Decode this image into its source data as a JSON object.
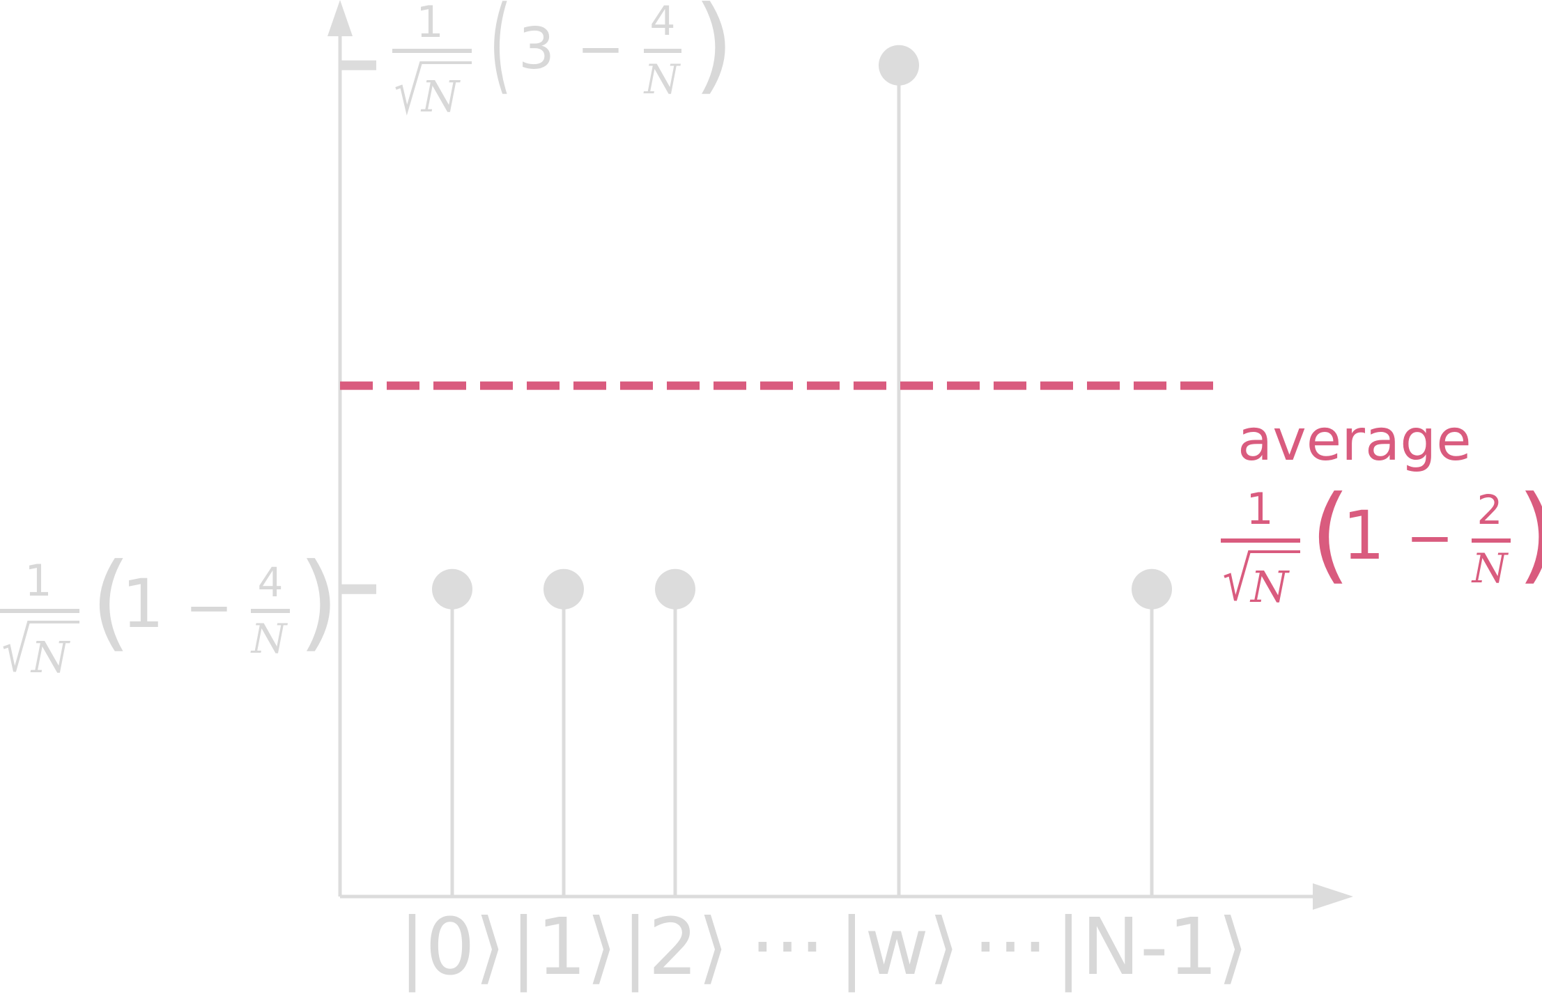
{
  "colors": {
    "axis": "#dcdcdc",
    "stem": "#dcdcdc",
    "average": "#d95b7e",
    "text_gray": "#d8d8d8",
    "text_pink": "#d95b7e"
  },
  "chart_data": {
    "type": "stem",
    "ylim": [
      0,
      1
    ],
    "categories": [
      "|0⟩",
      "|1⟩",
      "|2⟩",
      "|w⟩",
      "|N-1⟩"
    ],
    "x_tick_labels": [
      "|0⟩",
      "|1⟩",
      "|2⟩",
      "···",
      "|w⟩",
      "···",
      "|N-1⟩"
    ],
    "values": [
      0.355,
      0.355,
      0.355,
      0.96,
      0.355
    ],
    "y_tick_labels": [
      {
        "value": 0.96,
        "num": "1",
        "den": "N",
        "rest_a": "3",
        "rest_op": "−",
        "frac_num": "4",
        "frac_den": "N"
      },
      {
        "value": 0.355,
        "num": "1",
        "den": "N",
        "rest_a": "1",
        "rest_op": "−",
        "frac_num": "4",
        "frac_den": "N"
      }
    ],
    "average": {
      "value": 0.59,
      "label": "average",
      "num": "1",
      "den": "N",
      "rest_a": "1",
      "rest_op": "−",
      "frac_num": "2",
      "frac_den": "N"
    },
    "grid": false
  }
}
